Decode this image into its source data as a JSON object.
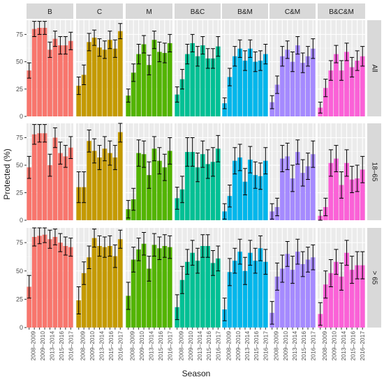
{
  "chart_data": {
    "type": "bar",
    "xlabel": "Season",
    "ylabel": "Protected (%)",
    "ylim": [
      0,
      88
    ],
    "yticks": [
      0,
      25,
      50,
      75
    ],
    "grid": true,
    "facet_columns": [
      "B",
      "C",
      "M",
      "B&C",
      "B&M",
      "C&M",
      "B&C&M"
    ],
    "facet_rows": [
      "All",
      "18–65",
      "> 65"
    ],
    "categories": [
      "2008–2009",
      "2009–2010",
      "2010–2011",
      "2011–2012",
      "2012–2013",
      "2013–2014",
      "2014–2015",
      "2015–2016",
      "2016–2017"
    ],
    "x_tick_labels": [
      "2008–2009",
      "2009–2010",
      "2013–2014",
      "2015–2016",
      "2016–2017"
    ],
    "colors": {
      "B": "#F8766D",
      "C": "#C49A00",
      "M": "#53B400",
      "B&C": "#00C094",
      "B&M": "#00B6EB",
      "C&M": "#A58AFF",
      "B&C&M": "#FB61D7"
    },
    "panels": {
      "All": {
        "B": {
          "values": [
            42,
            80,
            81,
            81,
            61,
            71,
            65,
            65,
            69
          ],
          "err": [
            7,
            7,
            6,
            6,
            7,
            7,
            8,
            8,
            8
          ]
        },
        "C": {
          "values": [
            28,
            38,
            68,
            72,
            63,
            61,
            70,
            62,
            78
          ],
          "err": [
            8,
            9,
            8,
            7,
            8,
            8,
            8,
            8,
            7
          ]
        },
        "M": {
          "values": [
            19,
            40,
            57,
            66,
            47,
            70,
            59,
            58,
            67
          ],
          "err": [
            6,
            8,
            9,
            8,
            9,
            8,
            9,
            9,
            8
          ]
        },
        "B&C": {
          "values": [
            20,
            34,
            57,
            67,
            55,
            65,
            53,
            53,
            64
          ],
          "err": [
            7,
            9,
            9,
            8,
            9,
            8,
            9,
            9,
            9
          ]
        },
        "B&M": {
          "values": [
            12,
            36,
            55,
            62,
            51,
            62,
            50,
            51,
            57
          ],
          "err": [
            5,
            8,
            9,
            8,
            9,
            8,
            9,
            9,
            9
          ]
        },
        "C&M": {
          "values": [
            13,
            29,
            55,
            61,
            50,
            65,
            49,
            55,
            62
          ],
          "err": [
            6,
            8,
            9,
            8,
            9,
            8,
            9,
            9,
            9
          ]
        },
        "B&C&M": {
          "values": [
            8,
            26,
            42,
            57,
            42,
            59,
            45,
            51,
            55
          ],
          "err": [
            5,
            8,
            9,
            8,
            9,
            8,
            9,
            9,
            9
          ]
        }
      },
      "18–65": {
        "B": {
          "values": [
            48,
            78,
            79,
            79,
            50,
            75,
            61,
            58,
            66
          ],
          "err": [
            10,
            9,
            8,
            8,
            10,
            9,
            10,
            10,
            10
          ]
        },
        "C": {
          "values": [
            30,
            30,
            72,
            63,
            57,
            65,
            61,
            57,
            80
          ],
          "err": [
            14,
            14,
            10,
            11,
            11,
            11,
            11,
            11,
            9
          ]
        },
        "M": {
          "values": [
            10,
            19,
            61,
            60,
            41,
            65,
            54,
            48,
            63
          ],
          "err": [
            8,
            10,
            12,
            12,
            12,
            11,
            12,
            12,
            12
          ]
        },
        "B&C": {
          "values": [
            20,
            28,
            62,
            62,
            48,
            60,
            51,
            53,
            65
          ],
          "err": [
            10,
            12,
            13,
            13,
            13,
            12,
            13,
            13,
            12
          ]
        },
        "B&M": {
          "values": [
            8,
            22,
            54,
            57,
            35,
            55,
            41,
            40,
            54
          ],
          "err": [
            7,
            10,
            12,
            12,
            12,
            12,
            12,
            12,
            12
          ]
        },
        "C&M": {
          "values": [
            8,
            12,
            56,
            58,
            38,
            62,
            43,
            49,
            60
          ],
          "err": [
            7,
            8,
            12,
            12,
            12,
            11,
            12,
            12,
            12
          ]
        },
        "B&C&M": {
          "values": [
            4,
            12,
            52,
            56,
            32,
            52,
            37,
            38,
            46
          ],
          "err": [
            5,
            8,
            12,
            12,
            12,
            12,
            12,
            12,
            12
          ]
        }
      },
      "> 65": {
        "B": {
          "values": [
            36,
            80,
            81,
            82,
            78,
            80,
            75,
            72,
            71
          ],
          "err": [
            10,
            8,
            7,
            7,
            8,
            7,
            8,
            8,
            8
          ]
        },
        "C": {
          "values": [
            24,
            48,
            62,
            79,
            72,
            71,
            72,
            63,
            78
          ],
          "err": [
            12,
            10,
            10,
            8,
            9,
            9,
            9,
            10,
            8
          ]
        },
        "M": {
          "values": [
            28,
            60,
            69,
            74,
            52,
            73,
            70,
            72,
            71
          ],
          "err": [
            12,
            11,
            10,
            10,
            11,
            10,
            10,
            10,
            10
          ]
        },
        "B&C": {
          "values": [
            18,
            42,
            58,
            66,
            59,
            72,
            72,
            57,
            61
          ],
          "err": [
            11,
            12,
            11,
            11,
            11,
            10,
            10,
            11,
            11
          ]
        },
        "B&M": {
          "values": [
            16,
            49,
            59,
            67,
            50,
            66,
            59,
            70,
            58
          ],
          "err": [
            10,
            12,
            11,
            11,
            12,
            11,
            11,
            11,
            11
          ]
        },
        "C&M": {
          "values": [
            13,
            45,
            52,
            65,
            51,
            67,
            56,
            60,
            62
          ],
          "err": [
            10,
            12,
            12,
            11,
            12,
            11,
            11,
            11,
            11
          ]
        },
        "B&C&M": {
          "values": [
            12,
            38,
            48,
            58,
            45,
            66,
            51,
            55,
            55
          ],
          "err": [
            10,
            12,
            12,
            11,
            12,
            11,
            12,
            12,
            12
          ]
        }
      }
    }
  }
}
